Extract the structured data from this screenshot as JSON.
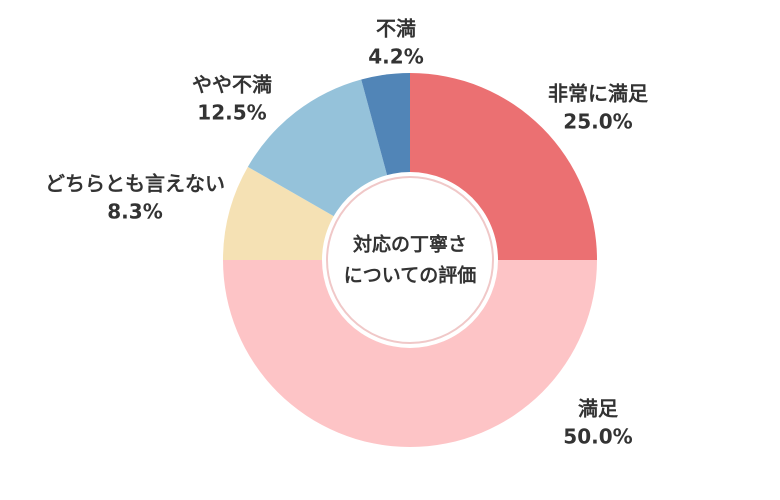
{
  "chart_data": {
    "type": "donut",
    "title": [
      "対応の丁寧さ",
      "についての評価"
    ],
    "categories": [
      "非常に満足",
      "満足",
      "どちらとも言えない",
      "やや不満",
      "不満"
    ],
    "values": [
      25.0,
      50.0,
      8.3,
      12.5,
      4.2
    ],
    "value_labels": [
      "25.0%",
      "50.0%",
      "8.3%",
      "12.5%",
      "4.2%"
    ],
    "colors": [
      "#eb7072",
      "#fdc4c6",
      "#f5e1b4",
      "#95c2da",
      "#5185b7"
    ]
  }
}
